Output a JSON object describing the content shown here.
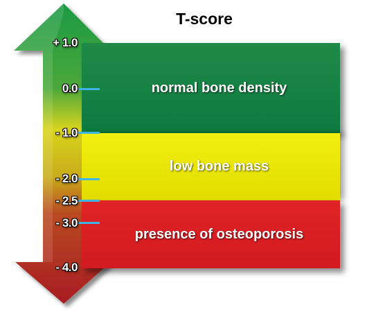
{
  "title": "T-score",
  "bands": [
    {
      "label": "normal bone density",
      "color": "#13813f"
    },
    {
      "label": "low bone mass",
      "color": "#ece810"
    },
    {
      "label": "presence of osteoporosis",
      "color": "#da2024"
    }
  ],
  "ticks": [
    {
      "label": "+ 1.0",
      "value": 1.0
    },
    {
      "label": "0.0",
      "value": 0.0
    },
    {
      "label": "- 1.0",
      "value": -1.0
    },
    {
      "label": "- 2.0",
      "value": -2.0
    },
    {
      "label": "- 2.5",
      "value": -2.5
    },
    {
      "label": "- 3.0",
      "value": -3.0
    },
    {
      "label": "- 4.0",
      "value": -4.0
    }
  ],
  "arrow_colors": {
    "top": "#16923f",
    "middle": "#d8d21c",
    "bottom": "#b51e22"
  },
  "tick_color": "#3fb4e6"
}
